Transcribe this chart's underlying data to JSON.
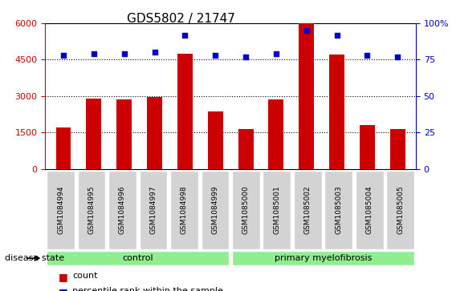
{
  "title": "GDS5802 / 21747",
  "samples": [
    "GSM1084994",
    "GSM1084995",
    "GSM1084996",
    "GSM1084997",
    "GSM1084998",
    "GSM1084999",
    "GSM1085000",
    "GSM1085001",
    "GSM1085002",
    "GSM1085003",
    "GSM1085004",
    "GSM1085005"
  ],
  "counts": [
    1700,
    2900,
    2850,
    2950,
    4750,
    2350,
    1650,
    2850,
    6000,
    4700,
    1800,
    1650
  ],
  "percentile_ranks": [
    78,
    79,
    79,
    80,
    92,
    78,
    77,
    79,
    95,
    92,
    78,
    77
  ],
  "bar_color": "#cc0000",
  "dot_color": "#0000cc",
  "ylim_left": [
    0,
    6000
  ],
  "ylim_right": [
    0,
    100
  ],
  "yticks_left": [
    0,
    1500,
    3000,
    4500,
    6000
  ],
  "yticks_right": [
    0,
    25,
    50,
    75,
    100
  ],
  "control_samples": 6,
  "disease_state_label": "disease state",
  "group_labels": [
    "control",
    "primary myelofibrosis"
  ],
  "group_colors": [
    "#90ee90",
    "#90ee90"
  ],
  "legend_count_label": "count",
  "legend_pct_label": "percentile rank within the sample",
  "tick_label_bg": "#d3d3d3",
  "plot_bg": "#ffffff",
  "grid_color": "#000000",
  "title_fontsize": 11,
  "axis_label_fontsize": 9,
  "tick_fontsize": 8
}
